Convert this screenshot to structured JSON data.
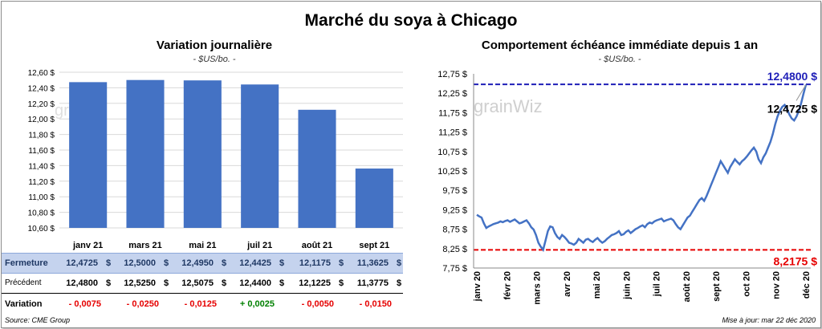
{
  "title": "Marché du soya à Chicago",
  "left": {
    "subtitle": "Variation journalière",
    "unit": "- $US/bo. -",
    "watermark": "grain",
    "table": {
      "rows": [
        {
          "label": "Fermeture",
          "values": [
            "12,4725",
            "12,5000",
            "12,4950",
            "12,4425",
            "12,1175",
            "11,3625"
          ]
        },
        {
          "label": "Précédent",
          "values": [
            "12,4800",
            "12,5250",
            "12,5075",
            "12,4400",
            "12,1225",
            "11,3775"
          ]
        },
        {
          "label": "Variation",
          "values": [
            "- 0,0075",
            "- 0,0250",
            "- 0,0125",
            "+ 0,0025",
            "- 0,0050",
            "- 0,0150"
          ]
        }
      ],
      "currency": "$"
    },
    "source": "Source: CME Group"
  },
  "right": {
    "subtitle": "Comportement  échéance immédiate depuis 1 an",
    "unit": "- $US/bo. -",
    "watermark": "grainWiz",
    "label_high": "12,4800 $",
    "label_last": "12,4725 $",
    "label_low": "8,2175 $",
    "updated": "Mise à jour: mar 22 déc 2020"
  },
  "colors": {
    "bar": "#4472c4",
    "line": "#4472c4",
    "high": "#1f1fb8",
    "low": "#e60000",
    "neg": "#e60000",
    "pos": "#008000",
    "band": "#c5d3ee"
  },
  "chart_data": [
    {
      "type": "bar",
      "title": "Variation journalière",
      "categories": [
        "janv 21",
        "mars 21",
        "mai 21",
        "juil 21",
        "août 21",
        "sept 21"
      ],
      "values": [
        12.4725,
        12.5,
        12.495,
        12.4425,
        12.1175,
        11.3625
      ],
      "ylim": [
        10.6,
        12.6
      ],
      "yticks": [
        "10,60 $",
        "10,80 $",
        "11,00 $",
        "11,20 $",
        "11,40 $",
        "11,60 $",
        "11,80 $",
        "12,00 $",
        "12,20 $",
        "12,40 $",
        "12,60 $"
      ],
      "grid": true
    },
    {
      "type": "line",
      "title": "Comportement  échéance immédiate depuis 1 an",
      "xlabels": [
        "janv 20",
        "févr 20",
        "mars 20",
        "avr 20",
        "mai 20",
        "juin 20",
        "juil 20",
        "août 20",
        "sept 20",
        "oct 20",
        "nov 20",
        "déc 20"
      ],
      "yticks": [
        "7,75 $",
        "8,25 $",
        "8,75 $",
        "9,25 $",
        "9,75 $",
        "10,25 $",
        "10,75 $",
        "11,25 $",
        "11,75 $",
        "12,25 $",
        "12,75 $"
      ],
      "ylim": [
        7.75,
        12.75
      ],
      "high": 12.48,
      "low": 8.2175,
      "series": [
        {
          "values": [
            9.12,
            9.08,
            9.05,
            8.9,
            8.78,
            8.82,
            8.85,
            8.88,
            8.9,
            8.92,
            8.95,
            8.93,
            8.96,
            8.98,
            8.94,
            8.97,
            9.0,
            8.95,
            8.9,
            8.92,
            8.95,
            8.98,
            8.9,
            8.8,
            8.74,
            8.6,
            8.4,
            8.3,
            8.22,
            8.45,
            8.7,
            8.82,
            8.8,
            8.65,
            8.55,
            8.5,
            8.6,
            8.55,
            8.48,
            8.4,
            8.38,
            8.35,
            8.4,
            8.5,
            8.45,
            8.4,
            8.48,
            8.5,
            8.45,
            8.42,
            8.48,
            8.52,
            8.45,
            8.4,
            8.44,
            8.5,
            8.55,
            8.6,
            8.62,
            8.65,
            8.7,
            8.6,
            8.62,
            8.68,
            8.72,
            8.65,
            8.7,
            8.75,
            8.78,
            8.82,
            8.85,
            8.8,
            8.88,
            8.92,
            8.9,
            8.95,
            8.98,
            9.0,
            9.02,
            8.95,
            8.98,
            9.0,
            9.02,
            8.98,
            8.88,
            8.8,
            8.75,
            8.85,
            8.95,
            9.05,
            9.1,
            9.2,
            9.3,
            9.4,
            9.5,
            9.55,
            9.48,
            9.6,
            9.75,
            9.9,
            10.05,
            10.2,
            10.35,
            10.5,
            10.4,
            10.3,
            10.2,
            10.35,
            10.45,
            10.55,
            10.48,
            10.42,
            10.5,
            10.55,
            10.62,
            10.7,
            10.78,
            10.85,
            10.75,
            10.55,
            10.45,
            10.6,
            10.7,
            10.85,
            11.0,
            11.2,
            11.45,
            11.65,
            11.8,
            11.9,
            11.95,
            11.85,
            11.7,
            11.6,
            11.55,
            11.65,
            11.8,
            12.0,
            12.25,
            12.4725
          ]
        }
      ]
    }
  ]
}
